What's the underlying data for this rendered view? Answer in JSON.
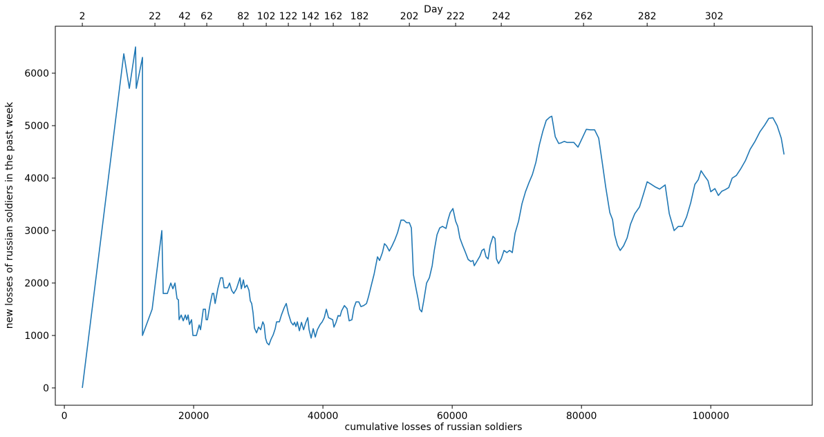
{
  "chart_data": {
    "type": "line",
    "xlabel": "cumulative losses of russian soldiers",
    "ylabel": "new losses of russian soldiers in the past week",
    "x2label": "Day",
    "color": "#1f77b4",
    "xlim": [
      -1400,
      115700
    ],
    "ylim": [
      -330,
      6895
    ],
    "xticks": [
      0,
      20000,
      40000,
      60000,
      80000,
      100000
    ],
    "yticks": [
      0,
      1000,
      2000,
      3000,
      4000,
      5000,
      6000
    ],
    "x2ticks": [
      {
        "value": 2780,
        "label": "2"
      },
      {
        "value": 14010,
        "label": "22"
      },
      {
        "value": 18610,
        "label": "42"
      },
      {
        "value": 22030,
        "label": "62"
      },
      {
        "value": 27700,
        "label": "82"
      },
      {
        "value": 31230,
        "label": "102"
      },
      {
        "value": 34650,
        "label": "122"
      },
      {
        "value": 38070,
        "label": "142"
      },
      {
        "value": 41600,
        "label": "162"
      },
      {
        "value": 45670,
        "label": "182"
      },
      {
        "value": 53370,
        "label": "202"
      },
      {
        "value": 60530,
        "label": "222"
      },
      {
        "value": 67590,
        "label": "242"
      },
      {
        "value": 80320,
        "label": "262"
      },
      {
        "value": 90160,
        "label": "282"
      },
      {
        "value": 100530,
        "label": "302"
      }
    ],
    "x": [
      2780,
      9200,
      10050,
      11020,
      11120,
      12090,
      12090,
      13580,
      15080,
      15290,
      15940,
      16470,
      16790,
      17110,
      17430,
      17650,
      17750,
      18070,
      18400,
      18720,
      18930,
      19140,
      19360,
      19680,
      19890,
      20430,
      20860,
      21070,
      21500,
      21820,
      21930,
      22140,
      22570,
      22890,
      23100,
      23320,
      23740,
      24170,
      24490,
      24710,
      25240,
      25560,
      25880,
      26200,
      26630,
      27170,
      27380,
      27700,
      27910,
      28240,
      28560,
      28770,
      28980,
      29200,
      29410,
      29730,
      30050,
      30370,
      30700,
      30910,
      31120,
      31340,
      31660,
      31980,
      32300,
      32620,
      32830,
      33260,
      33580,
      34010,
      34330,
      34650,
      35080,
      35400,
      35610,
      35830,
      36040,
      36360,
      36680,
      37010,
      37330,
      37650,
      37860,
      38180,
      38500,
      38820,
      39140,
      39570,
      39890,
      40210,
      40530,
      40860,
      41180,
      41500,
      41710,
      42030,
      42350,
      42670,
      42890,
      43320,
      43740,
      44060,
      44490,
      44810,
      45130,
      45560,
      45880,
      46310,
      46740,
      47060,
      47490,
      47920,
      48450,
      48770,
      49200,
      49520,
      49840,
      50270,
      50700,
      51120,
      51550,
      52080,
      52510,
      52940,
      53370,
      53690,
      54010,
      54440,
      54760,
      54970,
      55290,
      55610,
      56040,
      56470,
      56900,
      57220,
      57650,
      58070,
      58500,
      59040,
      59360,
      59680,
      60110,
      60530,
      60860,
      61180,
      61600,
      62030,
      62460,
      62890,
      63210,
      63420,
      63850,
      64280,
      64600,
      64920,
      65240,
      65560,
      65880,
      66310,
      66630,
      66850,
      67170,
      67590,
      68020,
      68450,
      68880,
      69300,
      69730,
      70270,
      70800,
      71340,
      71870,
      72410,
      72940,
      73480,
      74010,
      74550,
      75080,
      75400,
      75940,
      76470,
      76790,
      77330,
      77750,
      78290,
      78820,
      79460,
      80110,
      80750,
      81390,
      82030,
      82670,
      83210,
      83740,
      84390,
      84810,
      85130,
      85560,
      85990,
      86520,
      87060,
      87590,
      88240,
      88980,
      89630,
      90160,
      90800,
      91440,
      92090,
      92940,
      93580,
      94330,
      94970,
      95620,
      96260,
      96900,
      97540,
      98070,
      98500,
      99040,
      99570,
      100000,
      100640,
      101180,
      101710,
      102250,
      102780,
      103320,
      103960,
      104600,
      105350,
      106100,
      106840,
      107590,
      108340,
      108980,
      109620,
      110270,
      110910,
      111340
    ],
    "values": [
      0,
      6370,
      5710,
      6500,
      5710,
      6300,
      1000,
      1500,
      3000,
      1800,
      1800,
      2000,
      1890,
      2000,
      1700,
      1680,
      1300,
      1390,
      1280,
      1390,
      1300,
      1390,
      1210,
      1300,
      1000,
      1000,
      1200,
      1110,
      1500,
      1500,
      1300,
      1300,
      1610,
      1800,
      1800,
      1610,
      1890,
      2100,
      2100,
      1910,
      1910,
      2000,
      1860,
      1800,
      1890,
      2100,
      1890,
      2060,
      1910,
      1960,
      1860,
      1660,
      1610,
      1430,
      1140,
      1050,
      1160,
      1110,
      1260,
      1200,
      950,
      860,
      820,
      930,
      1010,
      1130,
      1260,
      1260,
      1390,
      1530,
      1610,
      1420,
      1250,
      1200,
      1250,
      1170,
      1260,
      1090,
      1250,
      1110,
      1240,
      1340,
      1110,
      950,
      1130,
      970,
      1110,
      1210,
      1260,
      1340,
      1500,
      1340,
      1320,
      1300,
      1160,
      1250,
      1380,
      1370,
      1470,
      1570,
      1510,
      1280,
      1300,
      1530,
      1640,
      1640,
      1550,
      1570,
      1610,
      1740,
      1960,
      2170,
      2500,
      2430,
      2580,
      2750,
      2710,
      2610,
      2710,
      2820,
      2960,
      3200,
      3200,
      3150,
      3150,
      3050,
      2160,
      1870,
      1670,
      1500,
      1450,
      1670,
      2000,
      2100,
      2330,
      2620,
      2920,
      3050,
      3080,
      3040,
      3210,
      3340,
      3420,
      3180,
      3080,
      2860,
      2720,
      2590,
      2450,
      2410,
      2430,
      2330,
      2420,
      2510,
      2620,
      2650,
      2500,
      2460,
      2720,
      2890,
      2850,
      2460,
      2370,
      2460,
      2620,
      2580,
      2620,
      2580,
      2950,
      3180,
      3510,
      3740,
      3910,
      4070,
      4300,
      4630,
      4890,
      5100,
      5160,
      5180,
      4790,
      4660,
      4670,
      4700,
      4680,
      4680,
      4680,
      4590,
      4760,
      4930,
      4920,
      4920,
      4760,
      4300,
      3840,
      3340,
      3210,
      2920,
      2720,
      2620,
      2710,
      2860,
      3120,
      3320,
      3450,
      3710,
      3930,
      3880,
      3830,
      3790,
      3870,
      3320,
      3000,
      3080,
      3080,
      3260,
      3530,
      3880,
      3970,
      4140,
      4040,
      3950,
      3740,
      3800,
      3670,
      3750,
      3780,
      3820,
      4000,
      4050,
      4170,
      4330,
      4550,
      4700,
      4880,
      5010,
      5140,
      5150,
      5000,
      4760,
      4450
    ]
  }
}
